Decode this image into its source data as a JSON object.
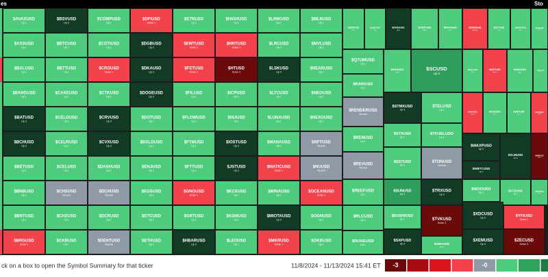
{
  "header": {
    "title": "es",
    "logo": "Sto"
  },
  "tiles": [
    {
      "symbol": "$AVAXUSD",
      "status": "Up 1",
      "color": "#4fcb7e"
    },
    {
      "symbol": "$AXSUSD",
      "status": "Up 1",
      "color": "#4fcb7e"
    },
    {
      "symbol": "$BALUSD",
      "status": "Up 1",
      "color": "#4fcb7e"
    },
    {
      "symbol": "$BANDUSD",
      "status": "Up 1",
      "color": "#4fcb7e"
    },
    {
      "symbol": "$BATUSD",
      "status": "Up 3",
      "color": "#123a25"
    },
    {
      "symbol": "$BCHUSD",
      "status": "Up 3",
      "color": "#123a25"
    },
    {
      "symbol": "$BETUSD",
      "status": "Up 1",
      "color": "#4fcb7e"
    },
    {
      "symbol": "$BNBUSD",
      "status": "Up 1",
      "color": "#4fcb7e"
    },
    {
      "symbol": "$BNTUSD",
      "status": "Up 1",
      "color": "#4fcb7e"
    },
    {
      "symbol": "$BRGUSD",
      "status": "Down 1",
      "color": "#f2434c"
    },
    {
      "symbol": "$BSVUSD",
      "status": "Up 3",
      "color": "#123a25"
    },
    {
      "symbol": "$BTCUSD",
      "status": "Up 1",
      "color": "#4fcb7e"
    },
    {
      "symbol": "$BTTUSD",
      "status": "Up 1",
      "color": "#4fcb7e"
    },
    {
      "symbol": "$CAKEUSD",
      "status": "Up 1",
      "color": "#4fcb7e"
    },
    {
      "symbol": "$CELOUSD",
      "status": "Up 1",
      "color": "#4fcb7e"
    },
    {
      "symbol": "$CELRUSD",
      "status": "Up 1",
      "color": "#4fcb7e"
    },
    {
      "symbol": "$CELUSD",
      "status": "Up 1",
      "color": "#4fcb7e"
    },
    {
      "symbol": "$CHSUSD",
      "status": "Neutral",
      "color": "#8f9aa6"
    },
    {
      "symbol": "$CHZUSD",
      "status": "Up 1",
      "color": "#4fcb7e"
    },
    {
      "symbol": "$CKBUSD",
      "status": "Up 1",
      "color": "#4fcb7e"
    },
    {
      "symbol": "$COMPUSD",
      "status": "Up 1",
      "color": "#4fcb7e"
    },
    {
      "symbol": "$COTIUSD",
      "status": "Up 1",
      "color": "#4fcb7e"
    },
    {
      "symbol": "$CROUSD",
      "status": "Down 1",
      "color": "#f2434c"
    },
    {
      "symbol": "$CTKUSD",
      "status": "Up 1",
      "color": "#4fcb7e"
    },
    {
      "symbol": "$CRVUSD",
      "status": "Up 3",
      "color": "#123a25"
    },
    {
      "symbol": "$CVXUSD",
      "status": "Up 3",
      "color": "#123a25"
    },
    {
      "symbol": "$DASHUSD",
      "status": "Up 1",
      "color": "#4fcb7e"
    },
    {
      "symbol": "$DCHUSD",
      "status": "Neutral",
      "color": "#8f9aa6"
    },
    {
      "symbol": "$DCRUSD",
      "status": "Up 1",
      "color": "#4fcb7e"
    },
    {
      "symbol": "$DENTUSD",
      "status": "Neutral",
      "color": "#8f9aa6"
    },
    {
      "symbol": "$DFIUSD",
      "status": "Down 1",
      "color": "#f2434c"
    },
    {
      "symbol": "$DGBUSD",
      "status": "Up 3",
      "color": "#123a25"
    },
    {
      "symbol": "$DKAUSD",
      "status": "Up 3",
      "color": "#123a25"
    },
    {
      "symbol": "$DOGEUSD",
      "status": "Up 3",
      "color": "#123a25"
    },
    {
      "symbol": "$DOTUSD",
      "status": "Up 1",
      "color": "#4fcb7e"
    },
    {
      "symbol": "$EGLDUSD",
      "status": "Up 1",
      "color": "#4fcb7e"
    },
    {
      "symbol": "$ENJUSD",
      "status": "Up 1",
      "color": "#4fcb7e"
    },
    {
      "symbol": "$EOSUSD",
      "status": "Up 1",
      "color": "#4fcb7e"
    },
    {
      "symbol": "$ETCUSD",
      "status": "Up 1",
      "color": "#4fcb7e"
    },
    {
      "symbol": "$ETHUSD",
      "status": "Up 1",
      "color": "#4fcb7e"
    },
    {
      "symbol": "$ETNUSD",
      "status": "Up 1",
      "color": "#4fcb7e"
    },
    {
      "symbol": "$EWTUSD",
      "status": "Down 1",
      "color": "#f2434c"
    },
    {
      "symbol": "$FETUSD",
      "status": "Down 1",
      "color": "#f2434c"
    },
    {
      "symbol": "$FILUSD",
      "status": "Up 1",
      "color": "#4fcb7e"
    },
    {
      "symbol": "$FLOWUSD",
      "status": "Up 1",
      "color": "#4fcb7e"
    },
    {
      "symbol": "$FTMUSD",
      "status": "Up 1",
      "color": "#4fcb7e"
    },
    {
      "symbol": "$FTTUSD",
      "status": "Up 1",
      "color": "#4fcb7e"
    },
    {
      "symbol": "$GNOUSD",
      "status": "Down 1",
      "color": "#f2434c"
    },
    {
      "symbol": "$GRTUSD",
      "status": "Up 1",
      "color": "#4fcb7e"
    },
    {
      "symbol": "$HBARUSD",
      "status": "Up 3",
      "color": "#123a25"
    },
    {
      "symbol": "$HIGHUSD",
      "status": "Up 1",
      "color": "#4fcb7e"
    },
    {
      "symbol": "$HNTUSD",
      "status": "Down 1",
      "color": "#f2434c"
    },
    {
      "symbol": "$HTUSD",
      "status": "Down 3",
      "color": "#6a0a0a"
    },
    {
      "symbol": "$ICPUSD",
      "status": "Up 1",
      "color": "#4fcb7e"
    },
    {
      "symbol": "$INJUSD",
      "status": "Up 1",
      "color": "#4fcb7e"
    },
    {
      "symbol": "$IOSTUSD",
      "status": "Up 3",
      "color": "#123a25"
    },
    {
      "symbol": "$JSTUSD",
      "status": "Up 3",
      "color": "#123a25"
    },
    {
      "symbol": "$KCSUSD",
      "status": "Up 1",
      "color": "#4fcb7e"
    },
    {
      "symbol": "$KSMUSD",
      "status": "Up 1",
      "color": "#4fcb7e"
    },
    {
      "symbol": "$LEOUSD",
      "status": "Up 1",
      "color": "#4fcb7e"
    },
    {
      "symbol": "$LINKUSD",
      "status": "Up 1",
      "color": "#4fcb7e"
    },
    {
      "symbol": "$LRCUSD",
      "status": "Up 1",
      "color": "#4fcb7e"
    },
    {
      "symbol": "$LSKUSD",
      "status": "Up 3",
      "color": "#123a25"
    },
    {
      "symbol": "$LTCUSD",
      "status": "Up 1",
      "color": "#4fcb7e"
    },
    {
      "symbol": "$LUNAUSD",
      "status": "Up 1",
      "color": "#4fcb7e"
    },
    {
      "symbol": "$MANAUSD",
      "status": "Up 1",
      "color": "#4fcb7e"
    },
    {
      "symbol": "$MATICUSD",
      "status": "Down 1",
      "color": "#f2434c"
    },
    {
      "symbol": "$MINAUSD",
      "status": "Up 1",
      "color": "#4fcb7e"
    },
    {
      "symbol": "$MIOTAUSD",
      "status": "Up 3",
      "color": "#123a25"
    },
    {
      "symbol": "$MKRUSD",
      "status": "Down 1",
      "color": "#f2434c"
    },
    {
      "symbol": "$MLNUSD",
      "status": "Up 1",
      "color": "#4fcb7e"
    },
    {
      "symbol": "$MVLUSD",
      "status": "Up 1",
      "color": "#4fcb7e"
    },
    {
      "symbol": "$NEARUSD",
      "status": "Up 1",
      "color": "#4fcb7e"
    },
    {
      "symbol": "$NEOUSD",
      "status": "Up 1",
      "color": "#4fcb7e"
    },
    {
      "symbol": "$NEXOUSD",
      "status": "Up 1",
      "color": "#4fcb7e"
    },
    {
      "symbol": "$NFTUSD",
      "status": "Neutral",
      "color": "#8f9aa6"
    },
    {
      "symbol": "$NUUSD",
      "status": "Neutral",
      "color": "#8f9aa6"
    },
    {
      "symbol": "$OCEANUSD",
      "status": "Down 1",
      "color": "#f2434c"
    },
    {
      "symbol": "$OGNUSD",
      "status": "Up 1",
      "color": "#4fcb7e"
    },
    {
      "symbol": "$OKBUSD",
      "status": "Up 1",
      "color": "#4fcb7e"
    },
    {
      "symbol": "$OMGUSD",
      "status": "Up 1",
      "color": "#4fcb7e"
    },
    {
      "symbol": "$ONEUSD",
      "status": "Up 1",
      "color": "#4fcb7e"
    },
    {
      "symbol": "$QTUMUSD",
      "status": "Up 1",
      "color": "#4fcb7e"
    },
    {
      "symbol": "$RARIUSD",
      "status": "Up 1",
      "color": "#4fcb7e"
    },
    {
      "symbol": "$RENDERUSD",
      "status": "Neutral",
      "color": "#8f9aa6"
    },
    {
      "symbol": "$RENUSD",
      "status": "Up 1",
      "color": "#4fcb7e"
    },
    {
      "symbol": "$REVUSD",
      "status": "Neutral",
      "color": "#8f9aa6"
    },
    {
      "symbol": "$REEFUSD",
      "status": "Up 1",
      "color": "#4fcb7e"
    },
    {
      "symbol": "$RLCUSD",
      "status": "Up 1",
      "color": "#4fcb7e"
    },
    {
      "symbol": "$RUNEUSD",
      "status": "Up 1",
      "color": "#4fcb7e"
    },
    {
      "symbol": "$ONGUSD",
      "status": "Up 3",
      "color": "#123a25"
    },
    {
      "symbol": "$ONTUSD",
      "status": "Up 1",
      "color": "#4fcb7e"
    },
    {
      "symbol": "$PAXGUSD",
      "status": "Up 1",
      "color": "#4fcb7e"
    },
    {
      "symbol": "$RVNUSD",
      "status": "Up 1",
      "color": "#4fcb7e"
    },
    {
      "symbol": "$SCUSD",
      "status": "Up 2",
      "color": "#2f9e5c"
    },
    {
      "symbol": "$STMXUSD",
      "status": "Up 3",
      "color": "#123a25"
    },
    {
      "symbol": "$TELUSD",
      "status": "Up 1",
      "color": "#4fcb7e"
    },
    {
      "symbol": "$STXUSD",
      "status": "Up 1",
      "color": "#4fcb7e"
    },
    {
      "symbol": "$TFUELUSD",
      "status": "Up 1",
      "color": "#4fcb7e"
    },
    {
      "symbol": "$SSTUSD",
      "status": "Up 1",
      "color": "#4fcb7e"
    },
    {
      "symbol": "$TONUSD",
      "status": "Neutral",
      "color": "#8f9aa6"
    },
    {
      "symbol": "$SUNUSD",
      "status": "Up 2",
      "color": "#2f9e5c"
    },
    {
      "symbol": "$TRXUSD",
      "status": "Up 3",
      "color": "#123a25"
    },
    {
      "symbol": "$SUSHIUSD",
      "status": "Up 1",
      "color": "#4fcb7e"
    },
    {
      "symbol": "$TVKUSD",
      "status": "Down 3",
      "color": "#6a0a0a"
    },
    {
      "symbol": "$SXPUSD",
      "status": "Up 3",
      "color": "#123a25"
    },
    {
      "symbol": "$UMAUSD",
      "status": "Up 1",
      "color": "#4fcb7e"
    },
    {
      "symbol": "$ORNUSD",
      "status": "Down 1",
      "color": "#f2434c"
    },
    {
      "symbol": "$OXTUSD",
      "status": "Up 1",
      "color": "#4fcb7e"
    },
    {
      "symbol": "$PERPUSD",
      "status": "Up 1",
      "color": "#4fcb7e"
    },
    {
      "symbol": "$PHAUSD",
      "status": "Up 1",
      "color": "#4fcb7e"
    },
    {
      "symbol": "$SKLUSD",
      "status": "Up 1",
      "color": "#4fcb7e"
    },
    {
      "symbol": "$SNTUSD",
      "status": "Down 1",
      "color": "#f2434c"
    },
    {
      "symbol": "$SNXUSD",
      "status": "Up 1",
      "color": "#4fcb7e"
    },
    {
      "symbol": "$SOLUSD",
      "status": "Up 1",
      "color": "#4fcb7e"
    },
    {
      "symbol": "$UNIUSD",
      "status": "Down 1",
      "color": "#f2434c"
    },
    {
      "symbol": "$UOSUSD",
      "status": "Up 1",
      "color": "#4fcb7e"
    },
    {
      "symbol": "$VETUSD",
      "status": "Up 1",
      "color": "#4fcb7e"
    },
    {
      "symbol": "$VGXUSD",
      "status": "Down 1",
      "color": "#f2434c"
    },
    {
      "symbol": "$WAXPUSD",
      "status": "Up 3",
      "color": "#123a25"
    },
    {
      "symbol": "$XLMUSD",
      "status": "Up 3",
      "color": "#123a25"
    },
    {
      "symbol": "$XMRUSD",
      "status": "Down 3",
      "color": "#6a0a0a"
    },
    {
      "symbol": "$WBTCUSD",
      "status": "Up 3",
      "color": "#123a25"
    },
    {
      "symbol": "$WOOUSD",
      "status": "Up 1",
      "color": "#4fcb7e"
    },
    {
      "symbol": "$XTZUSD",
      "status": "Up 1",
      "color": "#4fcb7e"
    },
    {
      "symbol": "$XVSUSD",
      "status": "Up 1",
      "color": "#4fcb7e"
    },
    {
      "symbol": "$XDCUSD",
      "status": "Up 3",
      "color": "#123a25"
    },
    {
      "symbol": "$YFIUSD",
      "status": "Down 1",
      "color": "#f2434c"
    },
    {
      "symbol": "$XEMUSD",
      "status": "Up 3",
      "color": "#123a25"
    },
    {
      "symbol": "$ZECUSD",
      "status": "Down 3",
      "color": "#6a0a0a"
    }
  ],
  "footer": {
    "hint": "ck on a box to open the Symbol Summary for that ticker",
    "date_range": "11/8/2024 - 11/13/2024 15:41 ET",
    "legend": [
      {
        "label": "-3",
        "color": "#6a0a0a"
      },
      {
        "color": "#a30d12"
      },
      {
        "color": "#d7161e"
      },
      {
        "color": "#f2434c"
      },
      {
        "label": "-0",
        "color": "#8f9aa6"
      },
      {
        "color": "#4fcb7e"
      },
      {
        "color": "#2fa55b"
      },
      {
        "color": "#1f7a43"
      }
    ]
  }
}
